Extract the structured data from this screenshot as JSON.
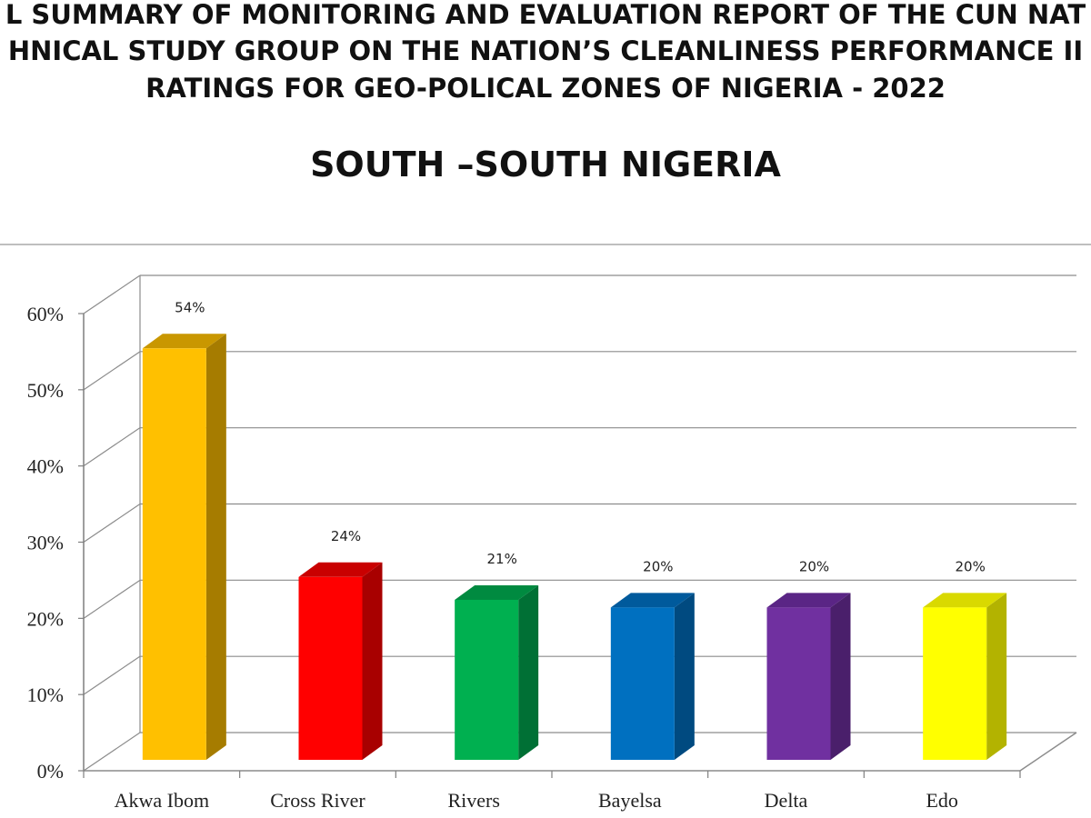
{
  "document": {
    "title_lines": [
      "L SUMMARY OF MONITORING AND EVALUATION REPORT OF THE CUN NAT",
      "HNICAL STUDY GROUP ON THE NATION’S CLEANLINESS PERFORMANCE II",
      "RATINGS FOR GEO-POLICAL ZONES OF NIGERIA - 2022"
    ]
  },
  "chart_data": {
    "type": "bar",
    "title": "SOUTH –SOUTH NIGERIA",
    "xlabel": "",
    "ylabel": "",
    "categories": [
      "Akwa Ibom",
      "Cross River",
      "Rivers",
      "Bayelsa",
      "Delta",
      "Edo"
    ],
    "values": [
      54,
      24,
      21,
      20,
      20,
      20
    ],
    "data_labels": [
      "54%",
      "24%",
      "21%",
      "20%",
      "20%",
      "20%"
    ],
    "y_ticks": [
      "0%",
      "10%",
      "20%",
      "30%",
      "40%",
      "50%",
      "60%"
    ],
    "ylim": [
      0,
      60
    ],
    "grid": true,
    "legend": "none",
    "style": "3d-column",
    "colors": [
      "#FFC000",
      "#FF0000",
      "#00B050",
      "#0070C0",
      "#7030A0",
      "#FFFF00"
    ],
    "side_colors": [
      "#A67C00",
      "#A80000",
      "#007035",
      "#004A80",
      "#4A1F6B",
      "#B3B300"
    ],
    "top_colors": [
      "#C99700",
      "#C90000",
      "#008A40",
      "#005A9C",
      "#5A2585",
      "#D9D900"
    ]
  }
}
